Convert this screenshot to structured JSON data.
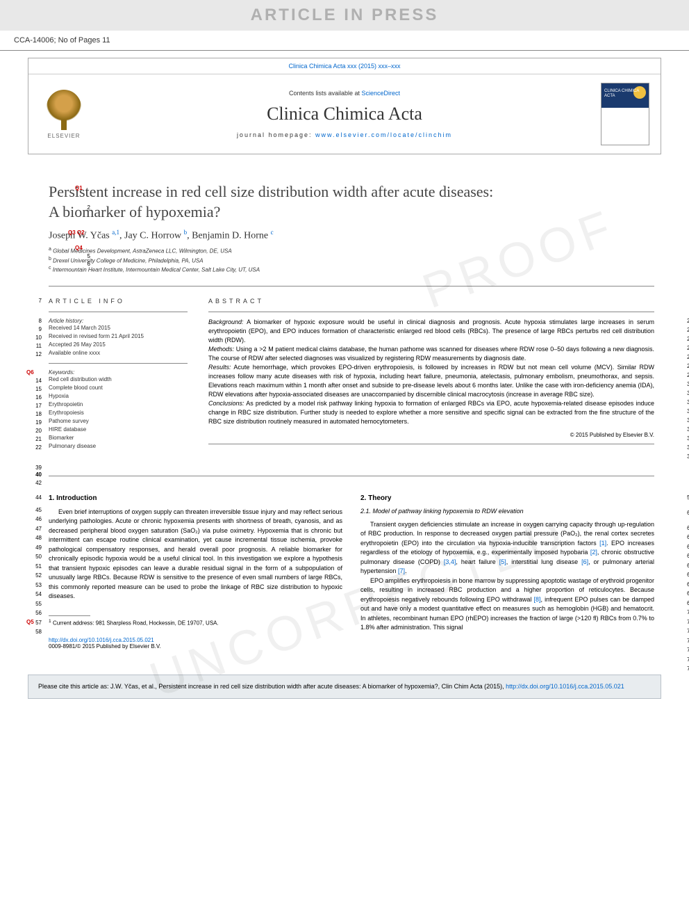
{
  "banner": {
    "text": "ARTICLE IN PRESS"
  },
  "header": {
    "article_id": "CCA-14006; No of Pages 11"
  },
  "masthead": {
    "citation": "Clinica Chimica Acta xxx (2015) xxx–xxx",
    "contents_prefix": "Contents lists available at ",
    "contents_link": "ScienceDirect",
    "journal_title": "Clinica Chimica Acta",
    "homepage_label": "journal homepage: ",
    "homepage_url": "www.elsevier.com/locate/clinchim",
    "elsevier": "ELSEVIER",
    "cover_label": "CLINICA\nCHIMICA\nACTA"
  },
  "title": {
    "line1": "Persistent increase in red cell size distribution width after acute diseases:",
    "line2": "A biomarker of hypoxemia?"
  },
  "authors_html": "Joseph W. Yčas <sup>a,1</sup>, Jay C. Horrow <sup>b</sup>, Benjamin D. Horne <sup>c</sup>",
  "affiliations": [
    {
      "sup": "a",
      "text": "Global Medicines Development, AstraZeneca LLC, Wilmington, DE, USA"
    },
    {
      "sup": "b",
      "text": "Drexel University College of Medicine, Philadelphia, PA, USA"
    },
    {
      "sup": "c",
      "text": "Intermountain Heart Institute, Intermountain Medical Center, Salt Lake City, UT, USA"
    }
  ],
  "info": {
    "header": "ARTICLE INFO",
    "history_label": "Article history:",
    "history": [
      "Received 14 March 2015",
      "Received in revised form 21 April 2015",
      "Accepted 26 May 2015",
      "Available online xxxx"
    ],
    "keywords_label": "Keywords:",
    "keywords": [
      "Red cell distribution width",
      "Complete blood count",
      "Hypoxia",
      "Erythropoietin",
      "Erythropoiesis",
      "Pathome survey",
      "HIRE database",
      "Biomarker",
      "Pulmonary disease"
    ]
  },
  "abstract": {
    "header": "ABSTRACT",
    "background_label": "Background:",
    "background": " A biomarker of hypoxic exposure would be useful in clinical diagnosis and prognosis. Acute hypoxia stimulates large increases in serum erythropoietin (EPO), and EPO induces formation of characteristic enlarged red blood cells (RBCs). The presence of large RBCs perturbs red cell distribution width (RDW).",
    "methods_label": "Methods:",
    "methods": " Using a >2 M patient medical claims database, the human pathome was scanned for diseases where RDW rose 0–50 days following a new diagnosis. The course of RDW after selected diagnoses was visualized by registering RDW measurements by diagnosis date.",
    "results_label": "Results:",
    "results": " Acute hemorrhage, which provokes EPO-driven erythropoiesis, is followed by increases in RDW but not mean cell volume (MCV). Similar RDW increases follow many acute diseases with risk of hypoxia, including heart failure, pneumonia, atelectasis, pulmonary embolism, pneumothorax, and sepsis. Elevations reach maximum within 1 month after onset and subside to pre-disease levels about 6 months later. Unlike the case with iron-deficiency anemia (IDA), RDW elevations after hypoxia-associated diseases are unaccompanied by discernible clinical macrocytosis (increase in average RBC size).",
    "conclusions_label": "Conclusions:",
    "conclusions": " As predicted by a model risk pathway linking hypoxia to formation of enlarged RBCs via EPO, acute hypoxemia-related disease episodes induce change in RBC size distribution. Further study is needed to explore whether a more sensitive and specific signal can be extracted from the fine structure of the RBC size distribution routinely measured in automated hemocytometers.",
    "copyright": "© 2015 Published by Elsevier B.V."
  },
  "sections": {
    "intro_num": "1.",
    "intro_head": "Introduction",
    "intro_p1": "Even brief interruptions of oxygen supply can threaten irreversible tissue injury and may reflect serious underlying pathologies. Acute or chronic hypoxemia presents with shortness of breath, cyanosis, and as decreased peripheral blood oxygen saturation (SaO₂) via pulse oximetry. Hypoxemia that is chronic but intermittent can escape routine clinical examination, yet cause incremental tissue ischemia, provoke pathological compensatory responses, and herald overall poor prognosis. A reliable biomarker for chronically episodic hypoxia would be a useful clinical tool. In this investigation we explore a hypothesis that transient hypoxic episodes can leave a durable residual signal in the form of a subpopulation of unusually large RBCs. Because RDW is sensitive to the presence of even small numbers of large RBCs, this commonly reported measure can be used to probe the linkage of RBC size distribution to hypoxic diseases.",
    "theory_num": "2.",
    "theory_head": "Theory",
    "theory_sub_num": "2.1.",
    "theory_sub_head": "Model of pathway linking hypoxemia to RDW elevation",
    "theory_p1_pre": "Transient oxygen deficiencies stimulate an increase in oxygen carrying capacity through up-regulation of RBC production. In response to decreased oxygen partial pressure (PaO₂), the renal cortex secretes erythropoietin (EPO) into the circulation via hypoxia-inducible transcription factors ",
    "ref1": "[1]",
    "theory_p1_mid1": ". EPO increases regardless of the etiology of hypoxemia, e.g., experimentally imposed hypobaria ",
    "ref2": "[2]",
    "theory_p1_mid2": ", chronic obstructive pulmonary disease (COPD) ",
    "ref34": "[3,4]",
    "theory_p1_mid3": ", heart failure ",
    "ref5": "[5]",
    "theory_p1_mid4": ", interstitial lung disease ",
    "ref6": "[6]",
    "theory_p1_mid5": ", or pulmonary arterial hypertension ",
    "ref7": "[7]",
    "theory_p1_end": ".",
    "theory_p2_pre": "EPO amplifies erythropoiesis in bone marrow by suppressing apoptotic wastage of erythroid progenitor cells, resulting in increased RBC production and a higher proportion of reticulocytes. Because erythropoiesis negatively rebounds following EPO withdrawal ",
    "ref8": "[8]",
    "theory_p2_end": ", infrequent EPO pulses can be damped out and have only a modest quantitative effect on measures such as hemoglobin (HGB) and hematocrit. In athletes, recombinant human EPO (rhEPO) increases the fraction of large (>120 fl) RBCs from 0.7% to 1.8% after administration. This signal"
  },
  "footnote": {
    "marker": "1",
    "text": "Current address: 981 Sharpless Road, Hockessin, DE 19707, USA."
  },
  "doi": {
    "url": "http://dx.doi.org/10.1016/j.cca.2015.05.021",
    "issn": "0009-8981/© 2015 Published by Elsevier B.V."
  },
  "citebox": {
    "text_pre": "Please cite this article as: J.W. Yčas, et al., Persistent increase in red cell size distribution width after acute diseases: A biomarker of hypoxemia?, Clin Chim Acta (2015), ",
    "url": "http://dx.doi.org/10.1016/j.cca.2015.05.021"
  },
  "queries": {
    "q1": "Q1",
    "q3q2": "Q3 Q2",
    "q4": "Q4",
    "q5": "Q5",
    "q6": "Q6"
  },
  "linenums_left_title": [
    "2"
  ],
  "linenums_left_affil": [
    "5",
    "6"
  ],
  "linenums_left_info": [
    "7",
    "8",
    "9",
    "10",
    "11",
    "12",
    "14",
    "15",
    "16",
    "17",
    "18",
    "19",
    "20",
    "21",
    "22",
    "39",
    "40",
    "42"
  ],
  "linenums_left_body": [
    "44",
    "45",
    "46",
    "47",
    "48",
    "49",
    "50",
    "51",
    "52",
    "53",
    "54",
    "55",
    "56",
    "57",
    "58"
  ],
  "linenums_right_abstract": [
    "23",
    "24",
    "25",
    "26",
    "27",
    "28",
    "29",
    "30",
    "31",
    "32",
    "33",
    "34",
    "35",
    "36",
    "37",
    "38"
  ],
  "linenums_right_body": [
    "59",
    "60",
    "61",
    "62",
    "63",
    "64",
    "65",
    "66",
    "67",
    "68",
    "69",
    "70",
    "71",
    "72",
    "73",
    "74",
    "75",
    "76"
  ],
  "colors": {
    "link": "#0066cc",
    "query": "#cc0000",
    "banner_bg": "#e8e8e8",
    "banner_fg": "#b0b0b0",
    "citebox_bg": "#e8ecef",
    "citebox_border": "#b8c0c8"
  }
}
